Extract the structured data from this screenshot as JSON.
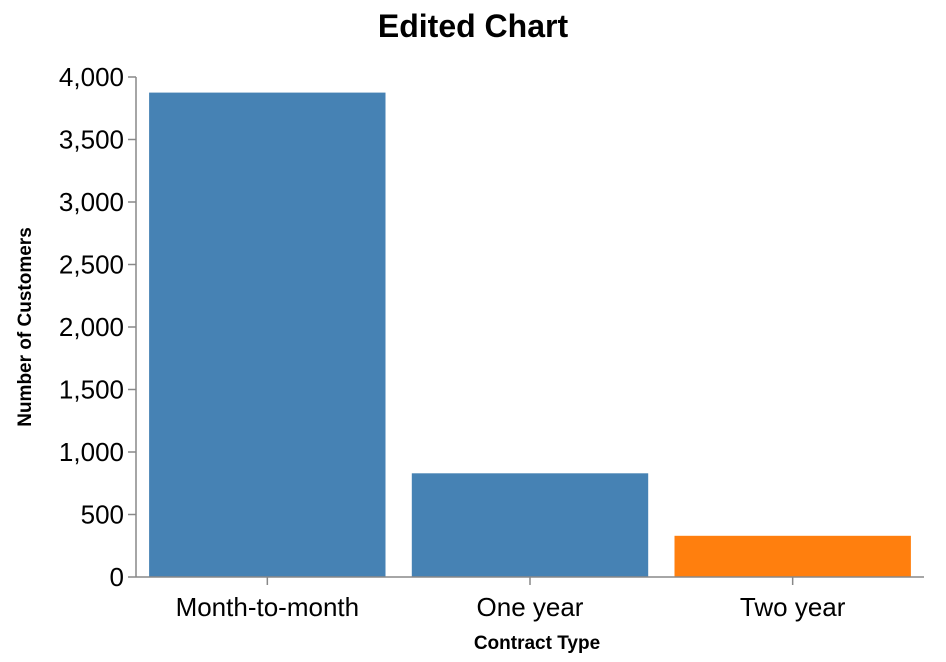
{
  "chart_data": {
    "type": "bar",
    "title": "Edited Chart",
    "xlabel": "Contract Type",
    "ylabel": "Number of Customers",
    "categories": [
      "Month-to-month",
      "One year",
      "Two year"
    ],
    "values": [
      3875,
      830,
      330
    ],
    "bar_colors": [
      "#4682b4",
      "#4682b4",
      "#ff7f0e"
    ],
    "ylim": [
      0,
      4000
    ],
    "yticks": [
      0,
      500,
      1000,
      1500,
      2000,
      2500,
      3000,
      3500,
      4000
    ],
    "ytick_labels": [
      "0",
      "500",
      "1,000",
      "1,500",
      "2,000",
      "2,500",
      "3,000",
      "3,500",
      "4,000"
    ],
    "grid": false,
    "legend": "none"
  }
}
